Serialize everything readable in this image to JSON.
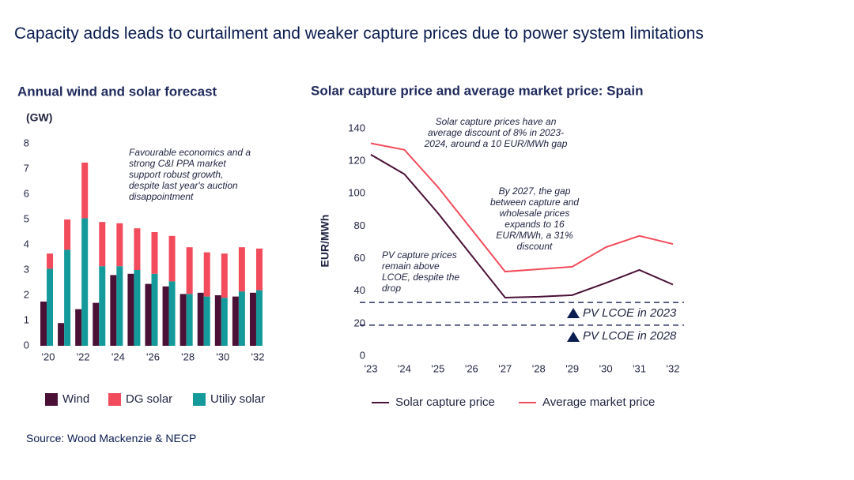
{
  "title": "Capacity adds leads to curtailment and weaker capture prices due to power system limitations",
  "source": "Source: Wood Mackenzie & NECP",
  "chart_data": [
    {
      "type": "bar",
      "title": "Annual wind and solar forecast",
      "y_label": "(GW)",
      "categories": [
        "'20",
        null,
        "'22",
        null,
        "'24",
        null,
        "'26",
        null,
        "'28",
        null,
        "'30",
        null,
        "'32"
      ],
      "series": [
        {
          "name": "Wind",
          "color": "#4a1036",
          "stacked": false,
          "values": [
            1.75,
            0.9,
            1.45,
            1.7,
            2.8,
            2.85,
            2.45,
            2.35,
            2.05,
            2.1,
            2.0,
            1.95,
            2.1
          ]
        },
        {
          "name": "DG solar",
          "color": "#f24b5b",
          "stacked": true,
          "values": [
            0.6,
            1.2,
            2.2,
            1.75,
            1.7,
            1.65,
            1.65,
            1.8,
            1.85,
            1.75,
            1.75,
            1.75,
            1.65
          ]
        },
        {
          "name": "Utiliy solar",
          "color": "#149a9a",
          "stacked": true,
          "values": [
            3.05,
            3.8,
            5.05,
            3.15,
            3.15,
            3.0,
            2.85,
            2.55,
            2.05,
            1.95,
            1.9,
            2.15,
            2.2
          ]
        }
      ],
      "ylim": [
        0,
        8
      ],
      "yticks": [
        0,
        1,
        2,
        3,
        4,
        5,
        6,
        7,
        8
      ],
      "annotations": [
        [
          "Favourable economics and a",
          "strong C&I PPA market",
          "support robust growth,",
          "despite last year's auction",
          "disappointment"
        ]
      ]
    },
    {
      "type": "line",
      "title": "Solar capture price and average market price: Spain",
      "y_label": "EUR/MWh",
      "categories": [
        "'23",
        "'24",
        "'25",
        "'26",
        "'27",
        "'28",
        "'29",
        "'30",
        "'31",
        "'32"
      ],
      "series": [
        {
          "name": "Solar capture price",
          "color": "#4a1036",
          "values": [
            124,
            112,
            88,
            62,
            36,
            36.5,
            37.5,
            45,
            53,
            44
          ]
        },
        {
          "name": "Average market price",
          "color": "#f24b5b",
          "values": [
            131,
            127,
            104,
            78,
            52,
            53.5,
            55,
            67,
            74,
            69
          ]
        }
      ],
      "ylim": [
        0,
        140
      ],
      "yticks": [
        0,
        20,
        40,
        60,
        80,
        100,
        120,
        140
      ],
      "reference_lines": [
        {
          "value": 33,
          "label": "PV LCOE in 2023"
        },
        {
          "value": 19,
          "label": "PV LCOE in 2028"
        }
      ],
      "annotations": [
        [
          "Solar capture prices have an",
          "average discount of 8% in 2023-",
          "2024, around a  10 EUR/MWh gap"
        ],
        [
          "By 2027, the gap",
          "between capture and",
          "wholesale prices",
          "expands to 16",
          "EUR/MWh, a 31%",
          "discount"
        ],
        [
          "PV capture prices",
          "remain above",
          "LCOE, despite the",
          "drop"
        ]
      ]
    }
  ]
}
